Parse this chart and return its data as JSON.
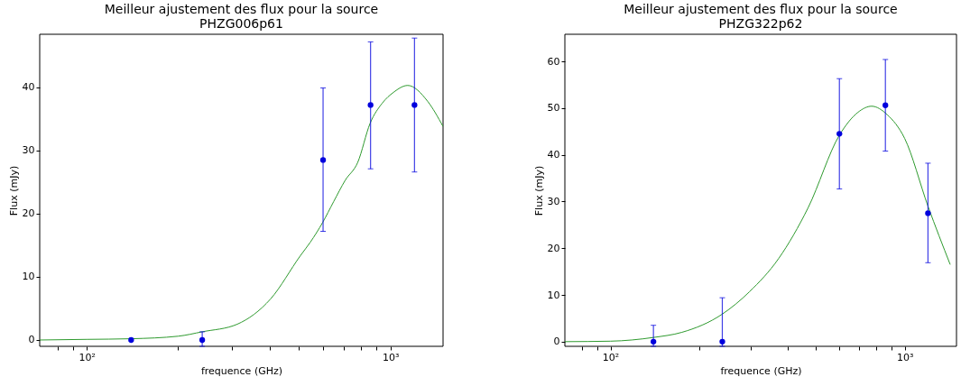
{
  "chart_data": [
    {
      "type": "scatter",
      "title": "Meilleur ajustement des flux pour la source",
      "subtitle": "PHZG006p61",
      "xlabel": "frequence (GHz)",
      "ylabel": "Flux (mJy)",
      "log": "x",
      "grid": false,
      "xlim": [
        70,
        1490
      ],
      "ylim": [
        -1,
        48.4
      ],
      "xticks": [
        {
          "value": 80,
          "label": null
        },
        {
          "value": 90,
          "label": null
        },
        {
          "value": 100,
          "label": "10²"
        },
        {
          "value": 200,
          "label": null
        },
        {
          "value": 300,
          "label": null
        },
        {
          "value": 400,
          "label": null
        },
        {
          "value": 500,
          "label": null
        },
        {
          "value": 600,
          "label": null
        },
        {
          "value": 700,
          "label": null
        },
        {
          "value": 800,
          "label": null
        },
        {
          "value": 900,
          "label": null
        },
        {
          "value": 1000,
          "label": "10³"
        }
      ],
      "yticks": [
        0,
        10,
        20,
        30,
        40
      ],
      "series": [
        {
          "type": "line",
          "color": "#2e9a2e",
          "line_style": "solid",
          "marker": "none",
          "x": [
            70,
            100,
            140,
            200,
            240,
            313,
            403,
            506,
            545,
            598,
            650,
            710,
            780,
            857,
            940,
            1023,
            1140,
            1325,
            1490
          ],
          "values": [
            0,
            0.1,
            0.2,
            0.6,
            1.3,
            2.5,
            6.5,
            13.4,
            15.5,
            18.6,
            21.9,
            25.3,
            28.1,
            34.3,
            37.5,
            39.2,
            40.3,
            37.8,
            33.8
          ]
        },
        {
          "color": "#0000dd",
          "marker": "circle",
          "x": [
            140,
            240,
            600,
            860,
            1200
          ],
          "values": [
            0,
            0,
            28.5,
            37.2,
            37.2
          ],
          "errors": [
            null,
            [
              -1,
              1.3
            ],
            [
              17.2,
              39.9
            ],
            [
              27.1,
              47.2
            ],
            [
              26.6,
              47.8
            ]
          ]
        }
      ]
    },
    {
      "type": "scatter",
      "title": "Meilleur ajustement des flux pour la source",
      "subtitle": "PHZG322p62",
      "xlabel": "frequence (GHz)",
      "ylabel": "Flux (mJy)",
      "log": "x",
      "grid": false,
      "xlim": [
        70,
        1500
      ],
      "ylim": [
        -1,
        65.8
      ],
      "xticks": [
        {
          "value": 80,
          "label": null
        },
        {
          "value": 90,
          "label": null
        },
        {
          "value": 100,
          "label": "10²"
        },
        {
          "value": 200,
          "label": null
        },
        {
          "value": 300,
          "label": null
        },
        {
          "value": 400,
          "label": null
        },
        {
          "value": 500,
          "label": null
        },
        {
          "value": 600,
          "label": null
        },
        {
          "value": 700,
          "label": null
        },
        {
          "value": 800,
          "label": null
        },
        {
          "value": 900,
          "label": null
        },
        {
          "value": 1000,
          "label": "10³"
        }
      ],
      "yticks": [
        0,
        10,
        20,
        30,
        40,
        50,
        60
      ],
      "series": [
        {
          "type": "line",
          "color": "#2e9a2e",
          "line_style": "solid",
          "marker": "none",
          "x": [
            70,
            100,
            140,
            175,
            240,
            297,
            373,
            470,
            600,
            694,
            772,
            872,
            1000,
            1200,
            1428
          ],
          "values": [
            0,
            0.1,
            0.9,
            2,
            5.9,
            10.7,
            17.8,
            28.7,
            44.2,
            49.1,
            50.4,
            48.6,
            43.5,
            29,
            16.5
          ]
        },
        {
          "color": "#0000dd",
          "marker": "circle",
          "x": [
            140,
            240,
            600,
            860,
            1200
          ],
          "values": [
            0,
            0,
            44.5,
            50.6,
            27.5
          ],
          "errors": [
            [
              -1,
              3.5
            ],
            [
              -1,
              9.4
            ],
            [
              32.7,
              56.3
            ],
            [
              40.8,
              60.4
            ],
            [
              16.9,
              38.2
            ]
          ]
        }
      ]
    }
  ]
}
